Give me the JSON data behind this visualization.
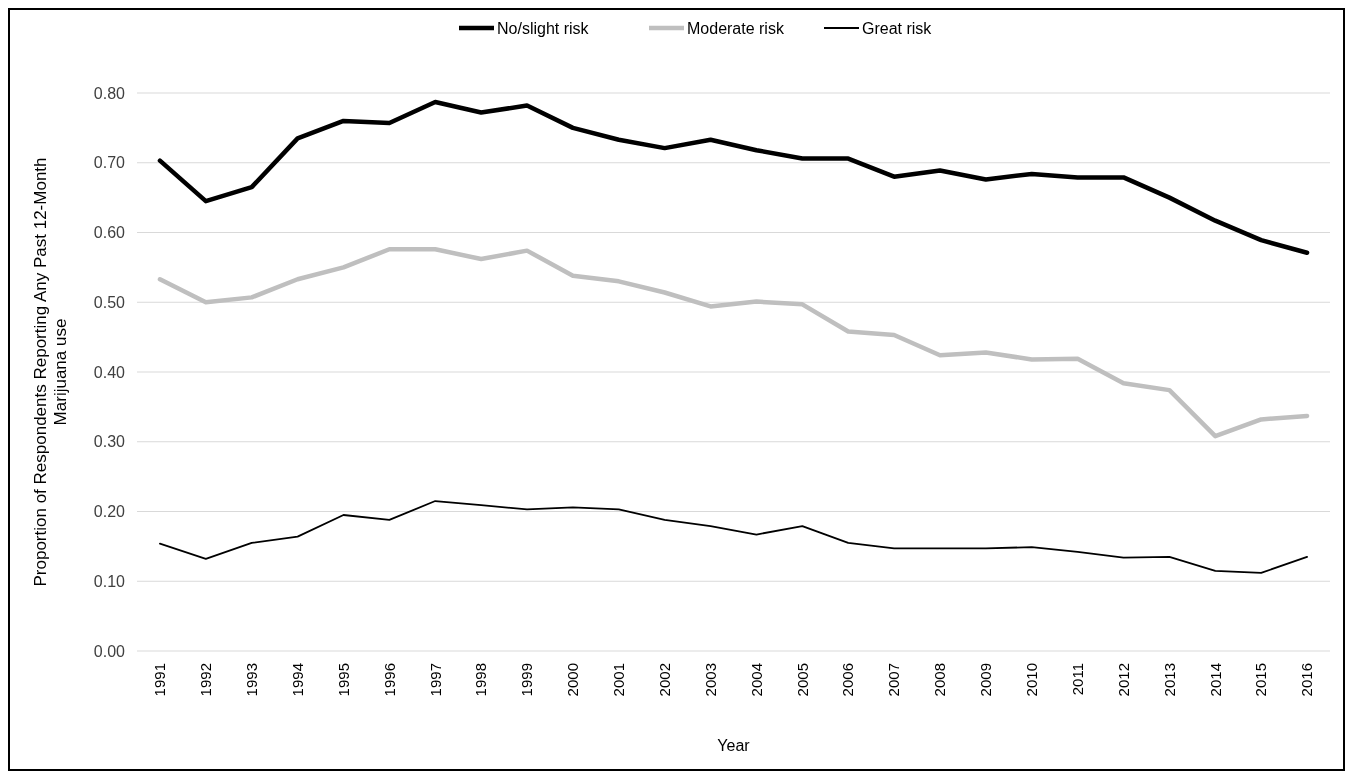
{
  "chart_data": {
    "type": "line",
    "xlabel": "Year",
    "ylabel": "Proportion of Respondents Reporting Any Past 12-Month Marijuana use",
    "categories": [
      "1991",
      "1992",
      "1993",
      "1994",
      "1995",
      "1996",
      "1997",
      "1998",
      "1999",
      "2000",
      "2001",
      "2002",
      "2003",
      "2004",
      "2005",
      "2006",
      "2007",
      "2008",
      "2009",
      "2010",
      "2011",
      "2012",
      "2013",
      "2014",
      "2015",
      "2016"
    ],
    "series": [
      {
        "name": "No/slight risk",
        "color": "#000000",
        "values": [
          0.703,
          0.645,
          0.665,
          0.735,
          0.76,
          0.757,
          0.787,
          0.772,
          0.782,
          0.75,
          0.733,
          0.721,
          0.733,
          0.718,
          0.706,
          0.706,
          0.68,
          0.689,
          0.676,
          0.684,
          0.679,
          0.679,
          0.65,
          0.617,
          0.589,
          0.571
        ]
      },
      {
        "name": "Moderate risk",
        "color": "#bfbfbf",
        "values": [
          0.533,
          0.5,
          0.507,
          0.533,
          0.55,
          0.576,
          0.576,
          0.562,
          0.574,
          0.538,
          0.53,
          0.514,
          0.494,
          0.501,
          0.497,
          0.458,
          0.453,
          0.424,
          0.428,
          0.418,
          0.419,
          0.384,
          0.374,
          0.308,
          0.332,
          0.337
        ]
      },
      {
        "name": "Great risk",
        "color": "#000000",
        "values": [
          0.154,
          0.132,
          0.155,
          0.164,
          0.195,
          0.188,
          0.215,
          0.209,
          0.203,
          0.206,
          0.203,
          0.188,
          0.179,
          0.167,
          0.179,
          0.155,
          0.147,
          0.147,
          0.147,
          0.149,
          0.142,
          0.134,
          0.135,
          0.115,
          0.112,
          0.135
        ]
      }
    ],
    "ylim": [
      0,
      0.8
    ],
    "yticks": [
      {
        "value": 0,
        "label": "0.00"
      },
      {
        "value": 0.1,
        "label": "0.10"
      },
      {
        "value": 0.2,
        "label": "0.20"
      },
      {
        "value": 0.3,
        "label": "0.30"
      },
      {
        "value": 0.4,
        "label": "0.40"
      },
      {
        "value": 0.5,
        "label": "0.50"
      },
      {
        "value": 0.6,
        "label": "0.60"
      },
      {
        "value": 0.7,
        "label": "0.70"
      },
      {
        "value": 0.8,
        "label": "0.80"
      }
    ],
    "grid": "y",
    "legend": "top",
    "marker": "none",
    "line_style": "solid"
  }
}
